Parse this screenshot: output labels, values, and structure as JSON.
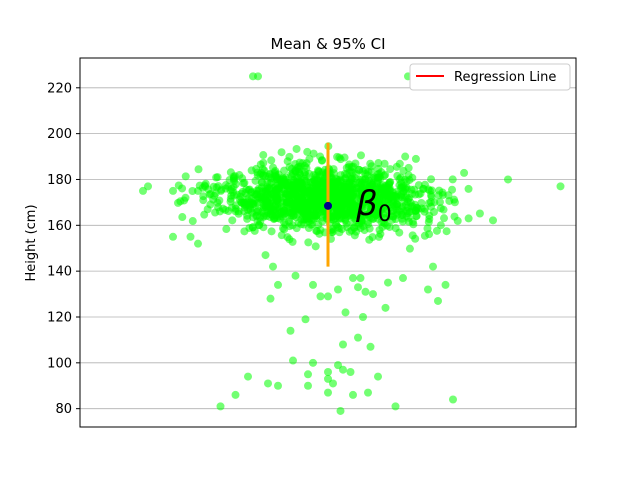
{
  "chart_data": {
    "type": "scatter",
    "title": "Mean & 95% CI",
    "xlabel": "",
    "ylabel": "Height (cm)",
    "ylim": [
      72,
      233
    ],
    "yticks": [
      80,
      100,
      120,
      140,
      160,
      180,
      200,
      220
    ],
    "grid": "horizontal",
    "x_ticks_visible": false,
    "legend": {
      "position": "top-right",
      "entries": [
        {
          "label": "Regression Line",
          "color": "#ff0000"
        }
      ]
    },
    "annotation": {
      "text": "β",
      "subscript": "0",
      "near_y": 165
    },
    "mean": {
      "y": 168.5,
      "color": "#00008b"
    },
    "ci": {
      "low": 142,
      "high": 196,
      "color": "#ffa500"
    },
    "point_color": "#00ff00",
    "cluster": {
      "y_center": 172,
      "y_spread": 14,
      "count": 1400
    },
    "outliers": [
      [
        -0.3,
        225
      ],
      [
        -0.28,
        225
      ],
      [
        0.32,
        225
      ],
      [
        -0.2,
        134
      ],
      [
        -0.23,
        128
      ],
      [
        -0.15,
        114
      ],
      [
        -0.13,
        138
      ],
      [
        -0.06,
        134
      ],
      [
        -0.03,
        129
      ],
      [
        0.0,
        129
      ],
      [
        0.04,
        132
      ],
      [
        0.07,
        122
      ],
      [
        0.1,
        137
      ],
      [
        0.12,
        133
      ],
      [
        0.13,
        137
      ],
      [
        0.15,
        131
      ],
      [
        0.18,
        130
      ],
      [
        0.23,
        124
      ],
      [
        0.3,
        137
      ],
      [
        0.4,
        132
      ],
      [
        0.44,
        127
      ],
      [
        0.47,
        134
      ],
      [
        0.42,
        142
      ],
      [
        0.24,
        135
      ],
      [
        -0.09,
        119
      ],
      [
        0.06,
        108
      ],
      [
        0.12,
        111
      ],
      [
        0.17,
        107
      ],
      [
        0.14,
        120
      ],
      [
        -0.14,
        101
      ],
      [
        -0.08,
        95
      ],
      [
        -0.06,
        100
      ],
      [
        0.02,
        91
      ],
      [
        0.0,
        93
      ],
      [
        0.0,
        87
      ],
      [
        0.04,
        99
      ],
      [
        0.05,
        79
      ],
      [
        0.06,
        97
      ],
      [
        0.09,
        96
      ],
      [
        0.1,
        86
      ],
      [
        0.16,
        87
      ],
      [
        0.2,
        94
      ],
      [
        0.27,
        81
      ],
      [
        -0.32,
        94
      ],
      [
        -0.24,
        91
      ],
      [
        -0.2,
        90
      ],
      [
        -0.08,
        90
      ],
      [
        -0.37,
        86
      ],
      [
        -0.43,
        81
      ],
      [
        0.5,
        84
      ],
      [
        0.0,
        96
      ],
      [
        -0.25,
        147
      ],
      [
        -0.22,
        142
      ]
    ],
    "extremes": [
      [
        -0.74,
        175
      ],
      [
        -0.72,
        177
      ],
      [
        -0.62,
        175
      ],
      [
        -0.57,
        172
      ],
      [
        -0.52,
        175
      ],
      [
        0.72,
        180
      ],
      [
        0.93,
        177
      ],
      [
        -0.62,
        155
      ],
      [
        -0.55,
        155
      ],
      [
        -0.52,
        152
      ]
    ]
  }
}
